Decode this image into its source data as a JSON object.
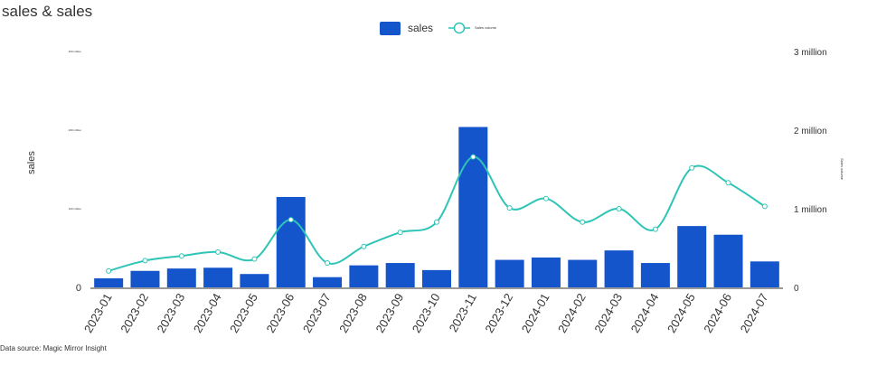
{
  "chart_data": {
    "type": "bar-line",
    "title": "sales & sales",
    "source": "Data source: Magic Mirror Insight",
    "y_label": "sales",
    "y2_label": "Sales volume",
    "categories": [
      "2023-01",
      "2023-02",
      "2023-03",
      "2023-04",
      "2023-05",
      "2023-06",
      "2023-07",
      "2023-08",
      "2023-09",
      "2023-10",
      "2023-11",
      "2023-12",
      "2024-01",
      "2024-02",
      "2024-03",
      "2024-04",
      "2024-05",
      "2024-06",
      "2024-07"
    ],
    "series": [
      {
        "name": "sales",
        "type": "bar",
        "color": "#1555cc",
        "values": [
          11500000,
          21000000,
          24000000,
          25000000,
          17000000,
          115000000,
          13000000,
          28000000,
          31000000,
          22000000,
          204000000,
          35000000,
          38000000,
          35000000,
          47000000,
          31000000,
          78000000,
          67000000,
          33000000
        ]
      },
      {
        "name": "Sales volume",
        "type": "line",
        "axis": "y2",
        "color": "#2ec4b6",
        "values": [
          210000,
          340000,
          400000,
          450000,
          360000,
          860000,
          310000,
          520000,
          700000,
          830000,
          1660000,
          1010000,
          1130000,
          830000,
          1000000,
          740000,
          1520000,
          1330000,
          1030000
        ]
      }
    ],
    "ylim": [
      0,
      300000000
    ],
    "yticks": [
      0,
      {
        "value": 100000000,
        "label": "100 million"
      },
      {
        "value": 200000000,
        "label": "200 million"
      },
      {
        "value": 300000000,
        "label": "300 million"
      }
    ],
    "y2lim": [
      0,
      3000000
    ],
    "y2ticks": [
      0,
      {
        "value": 1000000,
        "label": "1 million"
      },
      {
        "value": 2000000,
        "label": "2 million"
      },
      {
        "value": 3000000,
        "label": "3 million"
      }
    ]
  }
}
